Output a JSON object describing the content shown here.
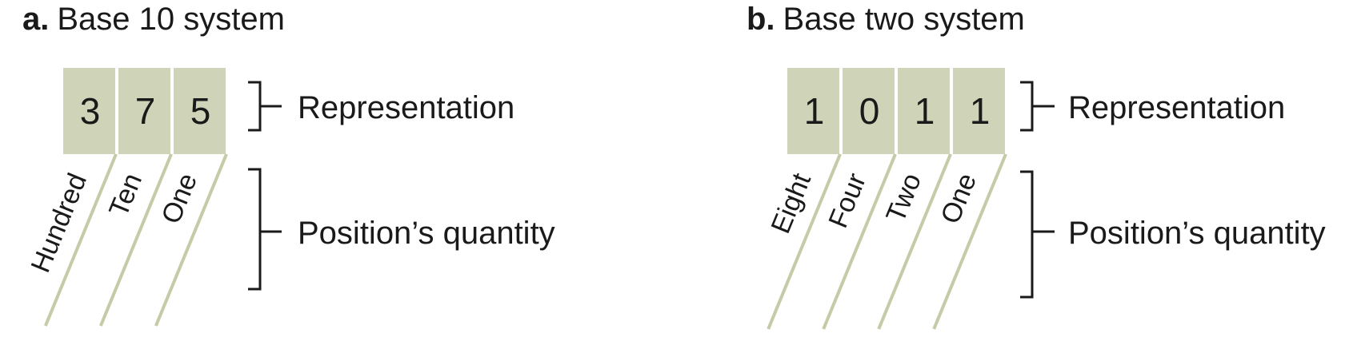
{
  "colors": {
    "cell_fill": "#cfd4b8",
    "stripe": "#c4cba6",
    "text": "#1a1a1a"
  },
  "panels": [
    {
      "letter": "a.",
      "title": "Base 10 system",
      "digits": [
        "3",
        "7",
        "5"
      ],
      "positions": [
        "Hundred",
        "Ten",
        "One"
      ],
      "representation_label": "Representation",
      "quantity_label": "Position’s quantity"
    },
    {
      "letter": "b.",
      "title": "Base two system",
      "digits": [
        "1",
        "0",
        "1",
        "1"
      ],
      "positions": [
        "Eight",
        "Four",
        "Two",
        "One"
      ],
      "representation_label": "Representation",
      "quantity_label": "Position’s quantity"
    }
  ]
}
